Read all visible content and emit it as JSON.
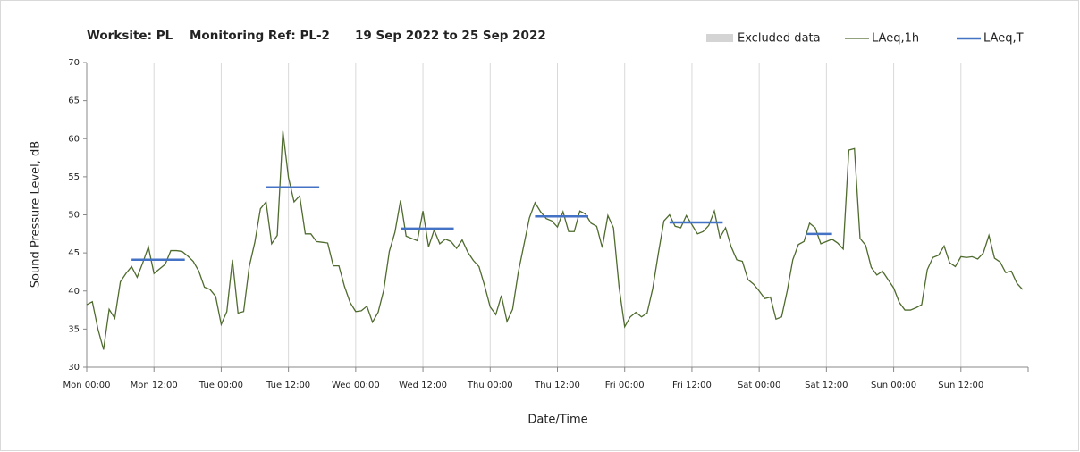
{
  "chart_data": {
    "type": "line",
    "title_parts": [
      "Worksite: PL",
      "Monitoring Ref: PL-2",
      "19 Sep 2022 to 25 Sep 2022"
    ],
    "xlabel": "Date/Time",
    "ylabel": "Sound Pressure Level, dB",
    "xlim": [
      0,
      168
    ],
    "xticks": [
      {
        "value": 0,
        "label": "Mon 00:00"
      },
      {
        "value": 12,
        "label": "Mon 12:00"
      },
      {
        "value": 24,
        "label": "Tue 00:00"
      },
      {
        "value": 36,
        "label": "Tue 12:00"
      },
      {
        "value": 48,
        "label": "Wed 00:00"
      },
      {
        "value": 60,
        "label": "Wed 12:00"
      },
      {
        "value": 72,
        "label": "Thu 00:00"
      },
      {
        "value": 84,
        "label": "Thu 12:00"
      },
      {
        "value": 96,
        "label": "Fri 00:00"
      },
      {
        "value": 108,
        "label": "Fri 12:00"
      },
      {
        "value": 120,
        "label": "Sat 00:00"
      },
      {
        "value": 132,
        "label": "Sat 12:00"
      },
      {
        "value": 144,
        "label": "Sun 00:00"
      },
      {
        "value": 156,
        "label": "Sun 12:00"
      }
    ],
    "ylim": [
      30,
      70
    ],
    "yticks": [
      30,
      35,
      40,
      45,
      50,
      55,
      60,
      65,
      70
    ],
    "grid": "x",
    "excluded": {
      "name": "Excluded data",
      "color": "#d4d4d4"
    },
    "x": [
      0,
      1,
      2,
      3,
      4,
      5,
      6,
      7,
      8,
      9,
      10,
      11,
      12,
      13,
      14,
      15,
      16,
      17,
      18,
      19,
      20,
      21,
      22,
      23,
      24,
      25,
      26,
      27,
      28,
      29,
      30,
      31,
      32,
      33,
      34,
      35,
      36,
      37,
      38,
      39,
      40,
      41,
      42,
      43,
      44,
      45,
      46,
      47,
      48,
      49,
      50,
      51,
      52,
      53,
      54,
      55,
      56,
      57,
      58,
      59,
      60,
      61,
      62,
      63,
      64,
      65,
      66,
      67,
      68,
      69,
      70,
      71,
      72,
      73,
      74,
      75,
      76,
      77,
      78,
      79,
      80,
      81,
      82,
      83,
      84,
      85,
      86,
      87,
      88,
      89,
      90,
      91,
      92,
      93,
      94,
      95,
      96,
      97,
      98,
      99,
      100,
      101,
      102,
      103,
      104,
      105,
      106,
      107,
      108,
      109,
      110,
      111,
      112,
      113,
      114,
      115,
      116,
      117,
      118,
      119,
      120,
      121,
      122,
      123,
      124,
      125,
      126,
      127,
      128,
      129,
      130,
      131,
      132,
      133,
      134,
      135,
      136,
      137,
      138,
      139,
      140,
      141,
      142,
      143,
      144,
      145,
      146,
      147,
      148,
      149,
      150,
      151,
      152,
      153,
      154,
      155,
      156,
      157,
      158,
      159,
      160,
      161,
      162,
      163,
      164,
      165,
      166,
      167
    ],
    "series": [
      {
        "name": "LAeq,1h",
        "color": "#4f6b2e",
        "values": [
          38.2,
          38.6,
          35,
          32.3,
          37.6,
          36.4,
          41.2,
          42.3,
          43.2,
          41.8,
          43.7,
          45.8,
          42.3,
          42.9,
          43.5,
          45.3,
          45.3,
          45.2,
          44.6,
          43.9,
          42.6,
          40.5,
          40.2,
          39.3,
          35.6,
          37.3,
          44.1,
          37.1,
          37.3,
          43.2,
          46.4,
          50.8,
          51.7,
          46.2,
          47.3,
          61,
          54.9,
          51.7,
          52.5,
          47.5,
          47.5,
          46.5,
          46.4,
          46.3,
          43.3,
          43.3,
          40.6,
          38.5,
          37.3,
          37.4,
          38,
          35.9,
          37.2,
          40.1,
          45.2,
          47.7,
          51.9,
          47.2,
          46.9,
          46.6,
          50.5,
          45.8,
          48,
          46.2,
          46.8,
          46.5,
          45.6,
          46.7,
          45.1,
          44,
          43.2,
          40.7,
          37.9,
          36.9,
          39.4,
          36,
          37.6,
          42.4,
          46,
          49.6,
          51.6,
          50.4,
          49.5,
          49.2,
          48.4,
          50.4,
          47.8,
          47.8,
          50.5,
          50.1,
          48.9,
          48.5,
          45.7,
          49.9,
          48.3,
          40.5,
          35.3,
          36.6,
          37.2,
          36.6,
          37.1,
          40.3,
          44.9,
          49.2,
          50,
          48.5,
          48.3,
          49.9,
          48.7,
          47.5,
          47.8,
          48.6,
          50.5,
          47,
          48.3,
          45.8,
          44.1,
          43.9,
          41.5,
          40.9,
          40,
          39,
          39.2,
          36.3,
          36.6,
          40,
          44.1,
          46.1,
          46.5,
          48.9,
          48.3,
          46.2,
          46.5,
          46.8,
          46.3,
          45.5,
          58.5,
          58.7,
          46.9,
          46,
          43.1,
          42.1,
          42.6,
          41.5,
          40.4,
          38.5,
          37.5,
          37.5,
          37.8,
          38.2,
          42.8,
          44.4,
          44.7,
          45.9,
          43.7,
          43.2,
          44.5,
          44.4,
          44.5,
          44.2,
          45,
          47.3,
          44.3,
          43.8,
          42.4,
          42.6,
          41,
          40.2
        ]
      },
      {
        "name": "LAeq,T",
        "color": "#4472c4",
        "segments": [
          {
            "x": [
              8,
              17.5
            ],
            "value": 44.1
          },
          {
            "x": [
              32,
              41.5
            ],
            "value": 53.6
          },
          {
            "x": [
              56,
              65.5
            ],
            "value": 48.2
          },
          {
            "x": [
              80,
              89.5
            ],
            "value": 49.8
          },
          {
            "x": [
              104,
              113.5
            ],
            "value": 49
          },
          {
            "x": [
              128.5,
              133
            ],
            "value": 47.5
          }
        ]
      }
    ]
  }
}
